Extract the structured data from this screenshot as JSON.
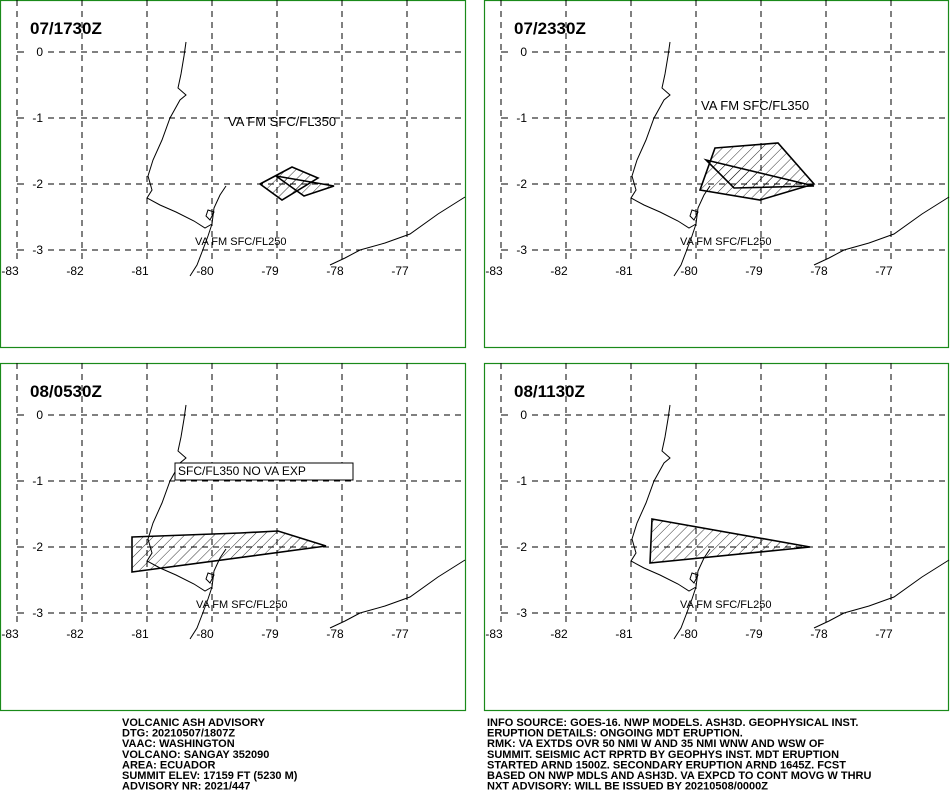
{
  "panels": [
    {
      "title": "07/1730Z",
      "labels": [
        "VA FM SFC/FL350",
        "VA FM SFC/FL250"
      ]
    },
    {
      "title": "07/2330Z",
      "labels": [
        "VA FM SFC/FL350",
        "VA FM SFC/FL250"
      ]
    },
    {
      "title": "08/0530Z",
      "labels": [
        "SFC/FL350 NO VA EXP",
        "VA FM SFC/FL250"
      ]
    },
    {
      "title": "08/1130Z",
      "labels": [
        "VA FM SFC/FL250"
      ]
    }
  ],
  "lat_ticks": [
    0,
    -1,
    -2,
    -3
  ],
  "lon_ticks": [
    -83,
    -82,
    -81,
    -80,
    -79,
    -78,
    -77
  ],
  "advisory": {
    "left": [
      "VOLCANIC ASH ADVISORY",
      "DTG: 20210507/1807Z",
      "VAAC: WASHINGTON",
      "VOLCANO: SANGAY 352090",
      "AREA: ECUADOR",
      "SUMMIT ELEV: 17159 FT (5230 M)",
      "ADVISORY NR: 2021/447"
    ],
    "right": [
      "INFO SOURCE: GOES-16. NWP MODELS. ASH3D. GEOPHYSICAL INST.",
      "ERUPTION DETAILS: ONGOING MDT ERUPTION.",
      "RMK: VA EXTDS OVR 50 NMI W AND 35 NMI WNW AND WSW OF",
      "SUMMIT. SEISMIC ACT RPRTD BY GEOPHYS INST. MDT ERUPTION",
      "STARTED ARND 1500Z. SECONDARY ERUPTION ARND 1645Z. FCST",
      "BASED ON NWP MDLS AND ASH3D. VA EXPCD TO CONT MOVG W THRU",
      "NXT ADVISORY: WILL BE ISSUED BY 20210508/0000Z"
    ]
  }
}
